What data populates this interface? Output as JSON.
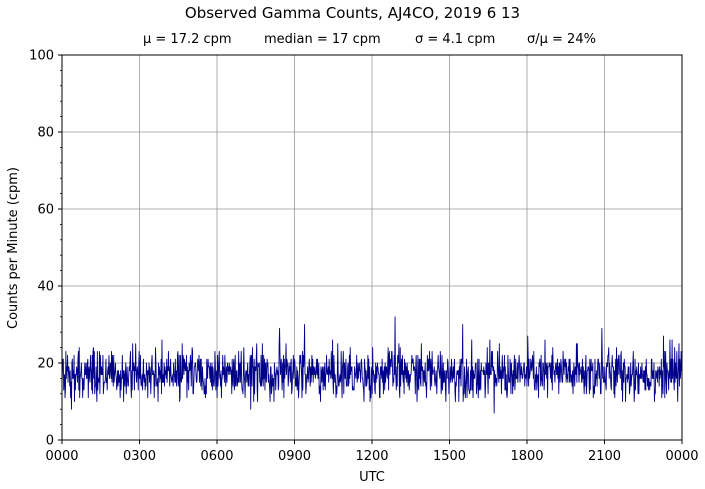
{
  "chart_data": {
    "type": "line",
    "title": "Observed Gamma Counts, AJ4CO, 2019 6 13",
    "subtitle": {
      "mean": "μ = 17.2 cpm",
      "median": "median = 17 cpm",
      "sigma": "σ = 4.1 cpm",
      "cv": "σ/μ = 24%"
    },
    "xlabel": "UTC",
    "ylabel": "Counts per Minute (cpm)",
    "xlim": [
      0,
      1440
    ],
    "ylim": [
      0,
      100
    ],
    "x_ticks": [
      {
        "minute": 0,
        "label": "0000"
      },
      {
        "minute": 180,
        "label": "0300"
      },
      {
        "minute": 360,
        "label": "0600"
      },
      {
        "minute": 540,
        "label": "0900"
      },
      {
        "minute": 720,
        "label": "1200"
      },
      {
        "minute": 900,
        "label": "1500"
      },
      {
        "minute": 1080,
        "label": "1800"
      },
      {
        "minute": 1260,
        "label": "2100"
      },
      {
        "minute": 1440,
        "label": "0000"
      }
    ],
    "y_ticks": [
      0,
      20,
      40,
      60,
      80,
      100
    ],
    "grid": true,
    "series": [
      {
        "color": "#00008b",
        "sample_minutes": 1440,
        "mean": 17.2,
        "sigma": 4.1,
        "min": 7,
        "max": 32,
        "peaks": [
          {
            "minute": 505,
            "value": 29
          },
          {
            "minute": 563,
            "value": 30
          },
          {
            "minute": 773,
            "value": 32
          },
          {
            "minute": 930,
            "value": 30
          },
          {
            "minute": 1253,
            "value": 29
          }
        ],
        "troughs": [
          {
            "minute": 22,
            "value": 8
          },
          {
            "minute": 438,
            "value": 8
          },
          {
            "minute": 1003,
            "value": 7
          }
        ]
      }
    ]
  }
}
